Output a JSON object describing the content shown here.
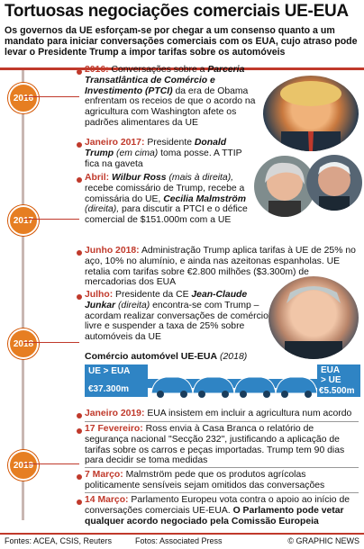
{
  "title": "Tortuosas negociações comerciais UE-EUA",
  "subtitle": "Os governos da UE esforçam-se por chegar a um consenso quanto a um mandato para iniciar conversações comerciais com os EUA, cujo atraso pode levar o Presidente Trump a impor tarifas sobre os automóveis",
  "years": [
    "2016",
    "2017",
    "2018",
    "2019"
  ],
  "entries": {
    "e1_date": "2016:",
    "e1_pre": " Conversações sobre a ",
    "e1_bold": "Parceria Transatlântica de Comércio e Investimento (PTCI)",
    "e1_post": " da era de Obama enfrentam os receios de que o acordo na agricultura com Washington afete os padrões alimentares da UE",
    "e2_date": "Janeiro 2017:",
    "e2_pre": " Presidente ",
    "e2_bold": "Donald Trump",
    "e2_italic": " (em cima)",
    "e2_post": " toma posse. A TTIP fica na gaveta",
    "e3_date": "Abril:",
    "e3_bold": " Wilbur Ross",
    "e3_italic": " (mais à direita),",
    "e3_mid": " recebe comissário de Trump, recebe a comissária do UE, ",
    "e3_bold2": "Cecilia Malmström",
    "e3_italic2": " (direita),",
    "e3_post": " para discutir a PTCI e o défice comercial de $151.000m com a UE",
    "e4_date": "Junho 2018:",
    "e4_text": " Administração Trump aplica tarifas à UE de 25% no aço, 10% no alumínio, e ainda nas azeitonas espanholas. UE retalia com tarifas sobre €2.800 milhões ($3.300m) de mercadorias dos EUA",
    "e5_date": "Julho:",
    "e5_pre": " Presidente da CE ",
    "e5_bold": "Jean-Claude Junkar",
    "e5_italic": " (direita)",
    "e5_post": " encontra-se com Trump – acordam realizar conversações de comércio livre e suspender a taxa de 25% sobre automóveis da UE",
    "e6_date": "Janeiro 2019:",
    "e6_text": " EUA insistem em incluir a agricultura num acordo",
    "e7_date": "17 Fevereiro:",
    "e7_text": " Ross envia à Casa Branca o relatório de segurança nacional \"Secção 232\", justificando a aplicação de tarifas sobre os carros e peças importadas. Trump tem 90 dias para decidir se toma medidas",
    "e8_date": "7 Março:",
    "e8_text": " Malmström pede que os produtos agrícolas politicamente sensíveis sejam omitidos das conversações",
    "e9_date": "14 Março:",
    "e9_text": " Parlamento Europeu vota contra o apoio ao início de conversações comerciais UE-EUA. ",
    "e9_bold": "O Parlamento pode vetar qualquer acordo negociado pela Comissão Europeia"
  },
  "car_trade": {
    "title": "Comércio automóvel UE-EUA",
    "year": "(2018)",
    "left_label": "UE > EUA",
    "left_value": "€37.300m",
    "right_label1": "EUA",
    "right_label2": "> UE",
    "right_value": "€5.500m"
  },
  "footer": {
    "sources": "Fontes: ACEA, CSIS, Reuters",
    "photos": "Fotos: Associated Press",
    "copyright": "© GRAPHIC NEWS"
  },
  "colors": {
    "accent": "#c0392b",
    "orange": "#e67e22",
    "blue": "#2f84c4"
  }
}
